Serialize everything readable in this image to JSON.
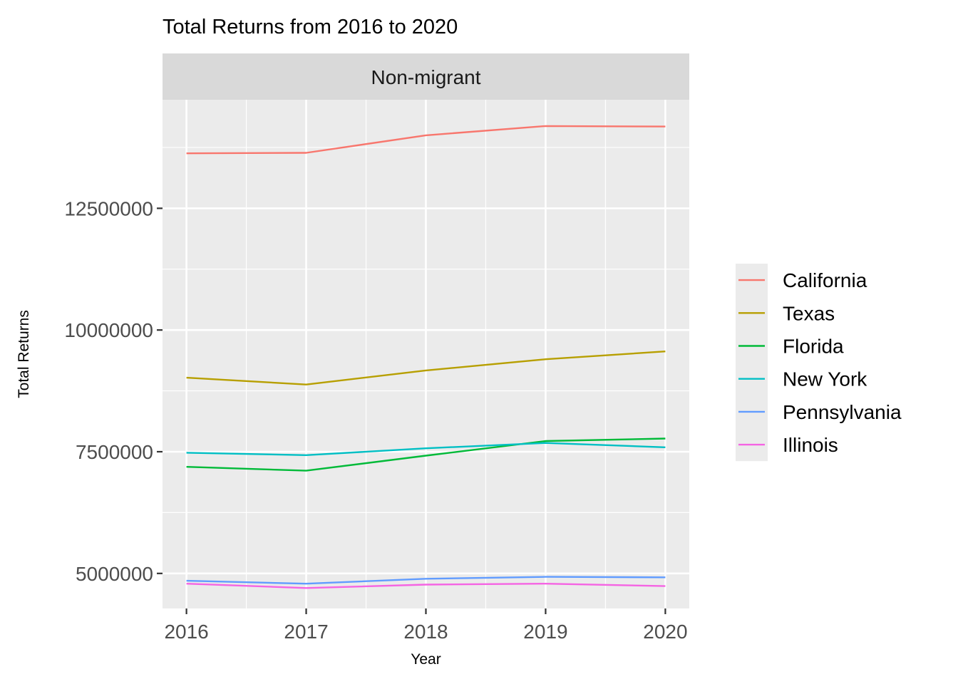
{
  "chart_data": {
    "type": "line",
    "title": "Total Returns from 2016 to 2020",
    "facet": "Non-migrant",
    "xlabel": "Year",
    "ylabel": "Total Returns",
    "x": [
      2016,
      2017,
      2018,
      2019,
      2020
    ],
    "x_ticks": [
      "2016",
      "2017",
      "2018",
      "2019",
      "2020"
    ],
    "xlim": [
      2015.8,
      2020.2
    ],
    "y_ticks": [
      5000000,
      7500000,
      10000000,
      12500000
    ],
    "y_tick_labels": [
      "5000000",
      "7500000",
      "10000000",
      "12500000"
    ],
    "ylim": [
      4280000,
      14730000
    ],
    "grid": true,
    "legend_position": "right",
    "series": [
      {
        "name": "California",
        "color": "#F8766D",
        "values": [
          13630000,
          13640000,
          14000000,
          14190000,
          14180000
        ]
      },
      {
        "name": "Texas",
        "color": "#B79F00",
        "values": [
          9020000,
          8880000,
          9170000,
          9400000,
          9560000
        ]
      },
      {
        "name": "Florida",
        "color": "#00BA38",
        "values": [
          7190000,
          7110000,
          7420000,
          7720000,
          7770000
        ]
      },
      {
        "name": "New York",
        "color": "#00BFC4",
        "values": [
          7480000,
          7430000,
          7570000,
          7680000,
          7590000
        ]
      },
      {
        "name": "Pennsylvania",
        "color": "#619CFF",
        "values": [
          4850000,
          4790000,
          4890000,
          4930000,
          4920000
        ]
      },
      {
        "name": "Illinois",
        "color": "#F564E3",
        "values": [
          4790000,
          4700000,
          4770000,
          4790000,
          4740000
        ]
      }
    ]
  }
}
